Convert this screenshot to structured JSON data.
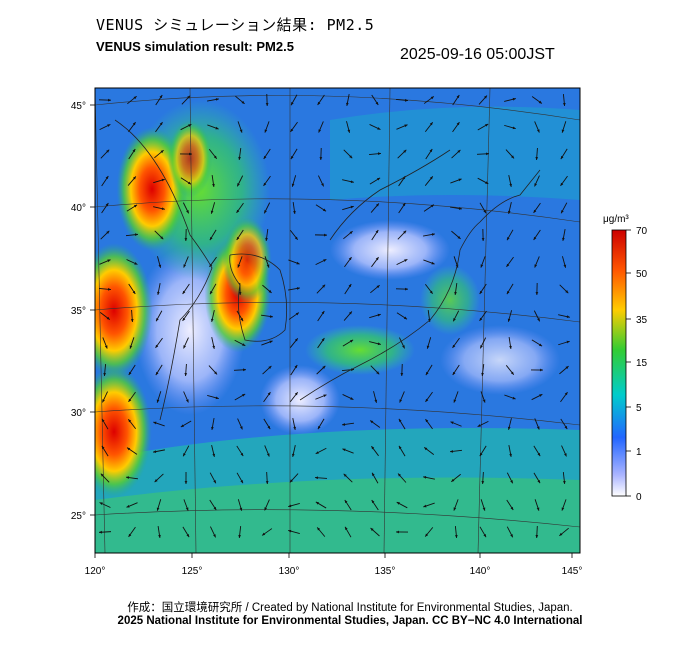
{
  "header": {
    "title_jp": "VENUS シミュレーション結果: PM2.5",
    "title_en": "VENUS simulation result: PM2.5",
    "timestamp": "2025-09-16 05:00JST"
  },
  "map": {
    "x_ticks": [
      "120°",
      "125°",
      "130°",
      "135°",
      "140°",
      "145°"
    ],
    "y_ticks": [
      "45°",
      "40°",
      "35°",
      "30°",
      "25°"
    ],
    "lon_range": [
      120,
      145.5
    ],
    "lat_range": [
      23,
      46
    ],
    "hotspots": [
      {
        "lon": 121.0,
        "lat": 35.0,
        "level": 62
      },
      {
        "lon": 123.0,
        "lat": 41.0,
        "level": 55
      },
      {
        "lon": 127.5,
        "lat": 35.8,
        "level": 50
      },
      {
        "lon": 128.0,
        "lat": 37.5,
        "level": 30
      },
      {
        "lon": 125.0,
        "lat": 42.5,
        "level": 25
      },
      {
        "lon": 121.0,
        "lat": 29.0,
        "level": 60
      }
    ]
  },
  "colorbar": {
    "unit": "μg/m³",
    "labels": [
      "70",
      "50",
      "35",
      "15",
      "5",
      "1",
      "0"
    ],
    "colors": [
      "#cc0000",
      "#ff6600",
      "#ffcc00",
      "#33cc33",
      "#00cccc",
      "#3366ff",
      "#ffffff"
    ]
  },
  "footer": {
    "credit_created": "作成：国立環境研究所 / Created by National Institute for Environmental Studies, Japan.",
    "credit_license": "2025 National Institute for Environmental Studies, Japan. CC BY−NC 4.0 International"
  }
}
